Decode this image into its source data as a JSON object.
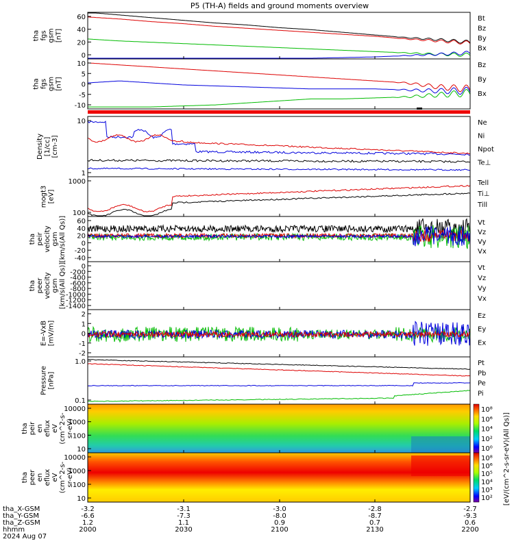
{
  "title": "P5 (TH-A) fields and ground moments overview",
  "panels": [
    {
      "ylabel": [
        "tha",
        "fgs",
        "gsm",
        "[nT]"
      ],
      "ticks": [
        "60",
        "40",
        "20",
        "0"
      ],
      "legend": [
        [
          "Bt",
          "#000000"
        ],
        [
          "Bz",
          "#dd0000"
        ],
        [
          "By",
          "#00bb00"
        ],
        [
          "Bx",
          "#0000dd"
        ]
      ]
    },
    {
      "ylabel": [
        "tha",
        "fgs",
        "gsm",
        "[nT]"
      ],
      "ticks": [
        "10",
        "5",
        "0",
        "-5",
        "-10"
      ],
      "legend": [
        [
          "Bz",
          "#dd0000"
        ],
        [
          "By",
          "#00bb00"
        ],
        [
          "Bx",
          "#0000dd"
        ]
      ]
    },
    {
      "ylabel": [],
      "ticks": [],
      "legend": []
    },
    {
      "ylabel": [
        "Density",
        "[1/cc]",
        "[cm-3]"
      ],
      "ticks": [
        "10",
        "1"
      ],
      "legend": [
        [
          "Ne",
          "#dd0000"
        ],
        [
          "Ni",
          "#000000"
        ],
        [
          "Npot",
          "#0000dd"
        ],
        [
          "Te⊥",
          "#dd0000"
        ]
      ]
    },
    {
      "ylabel": [
        "mogt3",
        "[eV]"
      ],
      "ticks": [
        "1000",
        "100"
      ],
      "legend": [
        [
          "Tell",
          "#000000"
        ],
        [
          "Ti⊥",
          "#0000dd"
        ],
        [
          "Till",
          "#00bb00"
        ]
      ]
    },
    {
      "ylabel": [
        "tha",
        "peir",
        "velocity",
        "gsm",
        "[km/s(All Qs)]"
      ],
      "ticks": [
        "60",
        "40",
        "20",
        "0",
        "-20",
        "-40"
      ],
      "legend": [
        [
          "Vt",
          "#000000"
        ],
        [
          "Vz",
          "#dd0000"
        ],
        [
          "Vy",
          "#00bb00"
        ],
        [
          "Vx",
          "#0000dd"
        ]
      ]
    },
    {
      "ylabel": [
        "tha",
        "peer",
        "velocity",
        "gsm",
        "[km/s(All Qs)]"
      ],
      "ticks": [
        "0",
        "-200",
        "-400",
        "-600",
        "-800",
        "-1000",
        "-1200",
        "-1400"
      ],
      "legend": [
        [
          "Vt",
          "#000000"
        ],
        [
          "Vz",
          "#dd0000"
        ],
        [
          "Vy",
          "#00bb00"
        ],
        [
          "Vx",
          "#0000dd"
        ]
      ]
    },
    {
      "ylabel": [
        "E=-VxB",
        "[mV/m]"
      ],
      "ticks": [
        "2",
        "1",
        "0",
        "-1",
        "-2"
      ],
      "legend": [
        [
          "Ez",
          "#dd0000"
        ],
        [
          "Ey",
          "#00bb00"
        ],
        [
          "Ex",
          "#0000dd"
        ]
      ]
    },
    {
      "ylabel": [
        "Pressure",
        "[nPa]"
      ],
      "ticks": [
        "1.0",
        "0.1"
      ],
      "legend": [
        [
          "Pt",
          "#000000"
        ],
        [
          "Pb",
          "#dd0000"
        ],
        [
          "Pe",
          "#00bb00"
        ],
        [
          "Pi",
          "#0000dd"
        ]
      ]
    },
    {
      "ylabel": [
        "tha",
        "peir",
        "en",
        "eflux",
        "eV",
        "(cm^2-s-",
        "sr-eV)"
      ],
      "ticks": [
        "10000",
        "1000",
        "100",
        "10"
      ],
      "legend": []
    },
    {
      "ylabel": [
        "tha",
        "peer",
        "en",
        "eflux",
        "eV",
        "(cm^2-s-",
        "sr-eV)"
      ],
      "ticks": [
        "10000",
        "1000",
        "100",
        "10"
      ],
      "legend": []
    }
  ],
  "colorbar": {
    "label": "[eV/(cm^2-s-sr-eV)(All Qs)]",
    "ticks": [
      "10⁸",
      "10⁶",
      "10⁴",
      "10²",
      "10⁰"
    ],
    "ticks2": [
      "10⁸",
      "10⁶",
      "10⁵",
      "10⁴",
      "10³",
      "10²"
    ]
  },
  "footer": {
    "row_labels": [
      "tha_X-GSM",
      "tha_Y-GSM",
      "tha_Z-GSM",
      "hhmm",
      "2024 Aug 07"
    ],
    "columns": [
      [
        "-3.2",
        "-6.6",
        "1.2",
        "2000"
      ],
      [
        "-3.1",
        "-7.3",
        "1.1",
        "2030"
      ],
      [
        "-3.0",
        "-8.0",
        "0.9",
        "2100"
      ],
      [
        "-2.8",
        "-8.7",
        "0.7",
        "2130"
      ],
      [
        "-2.7",
        "-9.3",
        "0.6",
        "2200"
      ]
    ]
  },
  "chart_data": {
    "type": "line",
    "title": "P5 (TH-A) fields and ground moments overview",
    "xlabel": "hhmm",
    "x_ticks": [
      "2000",
      "2030",
      "2100",
      "2130",
      "2200"
    ],
    "panels": [
      {
        "ylim": [
          0,
          70
        ],
        "series": [
          {
            "name": "Bt",
            "x": [
              0,
              10,
              20,
              30,
              40,
              50,
              60,
              70,
              80,
              90,
              100,
              110,
              120
            ],
            "values": [
              70,
              66,
              62,
              58,
              54,
              51,
              47,
              44,
              40,
              36,
              32,
              29,
              25
            ]
          },
          {
            "name": "Bz",
            "x": [
              0,
              10,
              20,
              30,
              40,
              50,
              60,
              70,
              80,
              90,
              100,
              110,
              120
            ],
            "values": [
              63,
              60,
              56,
              53,
              49,
              46,
              43,
              40,
              37,
              34,
              30,
              27,
              24
            ]
          },
          {
            "name": "By",
            "x": [
              0,
              10,
              20,
              30,
              40,
              50,
              60,
              70,
              80,
              90,
              100,
              110,
              120
            ],
            "values": [
              30,
              27,
              25,
              23,
              21,
              19,
              17,
              15,
              13,
              11,
              9,
              7,
              6
            ]
          },
          {
            "name": "Bx",
            "x": [
              0,
              10,
              20,
              30,
              40,
              50,
              60,
              70,
              80,
              90,
              100,
              110,
              120
            ],
            "values": [
              0,
              0,
              0,
              0,
              0,
              0,
              1,
              1,
              2,
              3,
              5,
              7,
              9
            ]
          }
        ]
      },
      {
        "ylim": [
          -13,
          12
        ],
        "series": [
          {
            "name": "Bz",
            "x": [
              0,
              10,
              20,
              30,
              40,
              50,
              60,
              70,
              80,
              90,
              100,
              110,
              120
            ],
            "values": [
              10,
              9,
              8,
              7,
              6,
              5,
              4,
              3,
              2,
              1,
              0,
              -2,
              -3
            ]
          },
          {
            "name": "By",
            "x": [
              0,
              10,
              20,
              30,
              40,
              50,
              60,
              70,
              80,
              90,
              100,
              110,
              120
            ],
            "values": [
              -12,
              -12,
              -12,
              -11.5,
              -11,
              -10,
              -9,
              -8,
              -8,
              -7.5,
              -7,
              -6,
              -5
            ]
          },
          {
            "name": "Bx",
            "x": [
              0,
              10,
              20,
              30,
              40,
              50,
              60,
              70,
              80,
              90,
              100,
              110,
              120
            ],
            "values": [
              0,
              1,
              0,
              -1,
              -1.5,
              -2,
              -2.5,
              -3,
              -3,
              -3,
              -3.5,
              -4,
              -4
            ]
          }
        ]
      }
    ]
  }
}
